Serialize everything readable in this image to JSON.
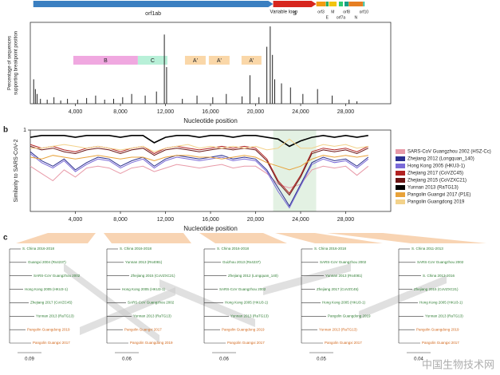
{
  "chart_data": [
    {
      "type": "breakpoints",
      "ylabel": [
        "Percentage of sequences",
        "supporting breakpoint position"
      ],
      "xlabel": "Nucleotide position",
      "genes": [
        {
          "name": "orf1ab",
          "start": 266,
          "end": 21555,
          "color": "#3a7fc1"
        },
        {
          "name": "S",
          "start": 21563,
          "end": 25384,
          "color": "#d7261e"
        },
        {
          "name": "orf3",
          "start": 25393,
          "end": 26220,
          "color": "#f39c12"
        },
        {
          "name": "E",
          "start": 26245,
          "end": 26472,
          "color": "#27ae60"
        },
        {
          "name": "M",
          "start": 26523,
          "end": 27191,
          "color": "#f1c40f"
        },
        {
          "name": "orf7a",
          "start": 27394,
          "end": 27759,
          "color": "#2ecc71"
        },
        {
          "name": "orf8",
          "start": 27894,
          "end": 28259,
          "color": "#16a085"
        },
        {
          "name": "N",
          "start": 28274,
          "end": 29533,
          "color": "#e67e22"
        },
        {
          "name": "orf10",
          "start": 29558,
          "end": 29674,
          "color": "#1abc9c"
        }
      ],
      "annotation": {
        "text": "Variable loop",
        "x": 22500
      },
      "regions": [
        {
          "name": "B",
          "start": 3820,
          "end": 9550,
          "color": "#f0a8e0"
        },
        {
          "name": "C",
          "start": 9550,
          "end": 12170,
          "color": "#b8f0d8"
        },
        {
          "name": "A'",
          "start": 13730,
          "end": 15570,
          "color": "#fad7a8"
        },
        {
          "name": "A'",
          "start": 15850,
          "end": 17690,
          "color": "#fad7a8"
        },
        {
          "name": "A'",
          "start": 18750,
          "end": 20520,
          "color": "#fad7a8"
        }
      ],
      "x": [
        300,
        450,
        600,
        900,
        1500,
        2100,
        2700,
        3300,
        4200,
        5000,
        5800,
        6600,
        7400,
        8200,
        9000,
        10200,
        11200,
        11900,
        12100,
        13500,
        14800,
        16200,
        17400,
        18800,
        19500,
        20300,
        21000,
        21300,
        21500,
        21700,
        22300,
        23100,
        24200,
        25500,
        26800,
        28300,
        29000
      ],
      "values": [
        30,
        18,
        12,
        6,
        5,
        8,
        4,
        6,
        5,
        7,
        10,
        5,
        6,
        8,
        12,
        10,
        15,
        85,
        45,
        6,
        10,
        8,
        12,
        9,
        35,
        8,
        70,
        95,
        60,
        30,
        25,
        20,
        12,
        18,
        10,
        5,
        3
      ],
      "color": "#222",
      "xlim": [
        0,
        32000
      ],
      "ylim": [
        0,
        100
      ],
      "xticks": [
        {
          "value": 4000,
          "label": "4,000"
        },
        {
          "value": 8000,
          "label": "8,000"
        },
        {
          "value": 12000,
          "label": "12,000"
        },
        {
          "value": 16000,
          "label": "16,000"
        },
        {
          "value": 20000,
          "label": "20,000"
        },
        {
          "value": 24000,
          "label": "24,000"
        },
        {
          "value": 28000,
          "label": "28,000"
        }
      ]
    },
    {
      "type": "line",
      "panel": "b",
      "ylabel": "Similarity to SARS-CoV-2",
      "xlabel": "Nucleotide position",
      "xlim": [
        0,
        32000
      ],
      "ylim": [
        0.55,
        1.0
      ],
      "yticks": [
        1
      ],
      "xticks": [
        {
          "value": 4000,
          "label": "4,000"
        },
        {
          "value": 8000,
          "label": "8,000"
        },
        {
          "value": 12000,
          "label": "12,000"
        },
        {
          "value": 16000,
          "label": "16,000"
        },
        {
          "value": 20000,
          "label": "20,000"
        },
        {
          "value": 24000,
          "label": "24,000"
        },
        {
          "value": 28000,
          "label": "28,000"
        }
      ],
      "shaded_region": [
        21563,
        25384
      ],
      "x": [
        0,
        1000,
        2000,
        3000,
        4000,
        5000,
        6000,
        7000,
        8000,
        9000,
        10000,
        11000,
        12000,
        13000,
        14000,
        15000,
        16000,
        17000,
        18000,
        19000,
        20000,
        21000,
        22000,
        23000,
        24000,
        25000,
        26000,
        27000,
        28000,
        29000,
        30000
      ],
      "series": [
        {
          "name": "SARS-CoV Guangzhou 2002 (HSZ-Cc)",
          "color": "#e89aa8",
          "values": [
            0.8,
            0.76,
            0.72,
            0.78,
            0.74,
            0.79,
            0.8,
            0.79,
            0.76,
            0.79,
            0.8,
            0.77,
            0.79,
            0.81,
            0.8,
            0.79,
            0.8,
            0.81,
            0.79,
            0.8,
            0.8,
            0.76,
            0.7,
            0.68,
            0.7,
            0.78,
            0.8,
            0.79,
            0.8,
            0.75,
            0.8
          ]
        },
        {
          "name": "Zhejiang 2012 (Longquan_140)",
          "color": "#2b2f8f",
          "values": [
            0.88,
            0.83,
            0.8,
            0.84,
            0.78,
            0.82,
            0.85,
            0.84,
            0.8,
            0.83,
            0.85,
            0.8,
            0.84,
            0.86,
            0.85,
            0.84,
            0.85,
            0.86,
            0.84,
            0.85,
            0.84,
            0.78,
            0.68,
            0.58,
            0.7,
            0.82,
            0.85,
            0.83,
            0.84,
            0.8,
            0.85
          ]
        },
        {
          "name": "Hong Kong 2005 (HKU3-1)",
          "color": "#7a6ad8",
          "values": [
            0.87,
            0.82,
            0.79,
            0.83,
            0.77,
            0.81,
            0.84,
            0.83,
            0.79,
            0.82,
            0.84,
            0.79,
            0.83,
            0.85,
            0.84,
            0.83,
            0.84,
            0.85,
            0.83,
            0.84,
            0.83,
            0.77,
            0.66,
            0.57,
            0.69,
            0.81,
            0.84,
            0.82,
            0.83,
            0.79,
            0.84
          ]
        },
        {
          "name": "Zhejiang 2017 (CoVZC45)",
          "color": "#b22222",
          "values": [
            0.92,
            0.9,
            0.91,
            0.89,
            0.88,
            0.9,
            0.91,
            0.9,
            0.88,
            0.9,
            0.91,
            0.87,
            0.9,
            0.91,
            0.9,
            0.89,
            0.9,
            0.91,
            0.9,
            0.91,
            0.9,
            0.84,
            0.72,
            0.65,
            0.75,
            0.88,
            0.9,
            0.89,
            0.9,
            0.88,
            0.91
          ]
        },
        {
          "name": "Zhejiang 2015 (CoVZXC21)",
          "color": "#6b1515",
          "values": [
            0.91,
            0.89,
            0.9,
            0.88,
            0.87,
            0.89,
            0.9,
            0.89,
            0.87,
            0.89,
            0.9,
            0.86,
            0.89,
            0.9,
            0.89,
            0.88,
            0.89,
            0.9,
            0.89,
            0.9,
            0.89,
            0.83,
            0.71,
            0.64,
            0.74,
            0.87,
            0.89,
            0.88,
            0.89,
            0.87,
            0.9
          ]
        },
        {
          "name": "Yunnan 2013 (RaTG13)",
          "color": "#000000",
          "values": [
            0.96,
            0.97,
            0.97,
            0.97,
            0.96,
            0.97,
            0.97,
            0.97,
            0.96,
            0.97,
            0.97,
            0.93,
            0.96,
            0.97,
            0.97,
            0.96,
            0.97,
            0.97,
            0.96,
            0.97,
            0.97,
            0.96,
            0.95,
            0.91,
            0.94,
            0.96,
            0.97,
            0.96,
            0.97,
            0.96,
            0.97
          ]
        },
        {
          "name": "Pangolin Guangxi 2017 (P1E)",
          "color": "#e8a23a",
          "values": [
            0.85,
            0.84,
            0.86,
            0.85,
            0.84,
            0.85,
            0.86,
            0.85,
            0.84,
            0.85,
            0.85,
            0.83,
            0.85,
            0.86,
            0.86,
            0.85,
            0.85,
            0.84,
            0.85,
            0.86,
            0.85,
            0.82,
            0.8,
            0.78,
            0.8,
            0.84,
            0.86,
            0.85,
            0.86,
            0.85,
            0.86
          ]
        },
        {
          "name": "Pangolin Guangdong 2019",
          "color": "#f3d28a",
          "values": [
            0.9,
            0.9,
            0.91,
            0.92,
            0.91,
            0.9,
            0.91,
            0.9,
            0.89,
            0.9,
            0.91,
            0.88,
            0.9,
            0.91,
            0.92,
            0.9,
            0.91,
            0.9,
            0.91,
            0.9,
            0.91,
            0.89,
            0.9,
            0.95,
            0.9,
            0.9,
            0.92,
            0.91,
            0.92,
            0.9,
            0.91
          ]
        }
      ]
    }
  ],
  "trees": {
    "panel": "c",
    "trees": [
      {
        "scale": "0.09",
        "leaves": [
          "S. China 2016-2018",
          "Guangxi 2004 (Rs4237)",
          "SARS-CoV Guangzhou 2002",
          "Hong Kong 2005 (HKU3-1)",
          "Zhejiang 2017 (CoVZC45)",
          "Yunnan 2013 (RaTG13)",
          "Pangolin Guangdong 2019",
          "Pangolin Guangxi 2017"
        ]
      },
      {
        "scale": "0.06",
        "leaves": [
          "S. China 2016-2018",
          "Yunnan 2013 (Rs4081)",
          "Zhejiang 2015 (CoVZXC21)",
          "Hong Kong 2005 (HKU3-1)",
          "SARS-CoV Guangzhou 2002",
          "Yunnan 2013 (RaTG13)",
          "Pangolin Guangxi 2017",
          "Pangolin Guangdong 2019"
        ]
      },
      {
        "scale": "0.06",
        "leaves": [
          "S. China 2016-2018",
          "Guizhou 2013 (Rs4237)",
          "Zhejiang 2012 (Longquan_140)",
          "SARS-CoV Guangzhou 2002",
          "Hong Kong 2005 (HKU3-1)",
          "Yunnan 2013 (RaTG13)",
          "Pangolin Guangdong 2019",
          "Pangolin Guangxi 2017"
        ]
      },
      {
        "scale": "0.05",
        "leaves": [
          "S. China 2016-2018",
          "SARS-CoV Guangzhou 2002",
          "Yunnan 2013 (Rs4081)",
          "Zhejiang 2017 (CoVZC45)",
          "Hong Kong 2005 (HKU3-1)",
          "Pangolin Guangdong 2019",
          "Yunnan 2013 (RaTG13)",
          "Pangolin Guangxi 2017"
        ]
      },
      {
        "scale": "0.04",
        "leaves": [
          "S. China 2011-2013",
          "SARS-CoV Guangzhou 2002",
          "S. China 2013-2016",
          "Zhejiang 2015 (CoVZXC21)",
          "Hong Kong 2005 (HKU3-1)",
          "Yunnan 2013 (RaTG13)",
          "Pangolin Guangdong 2019",
          "Pangolin Guangxi 2017"
        ]
      }
    ]
  },
  "watermark": "中国生物技术网"
}
